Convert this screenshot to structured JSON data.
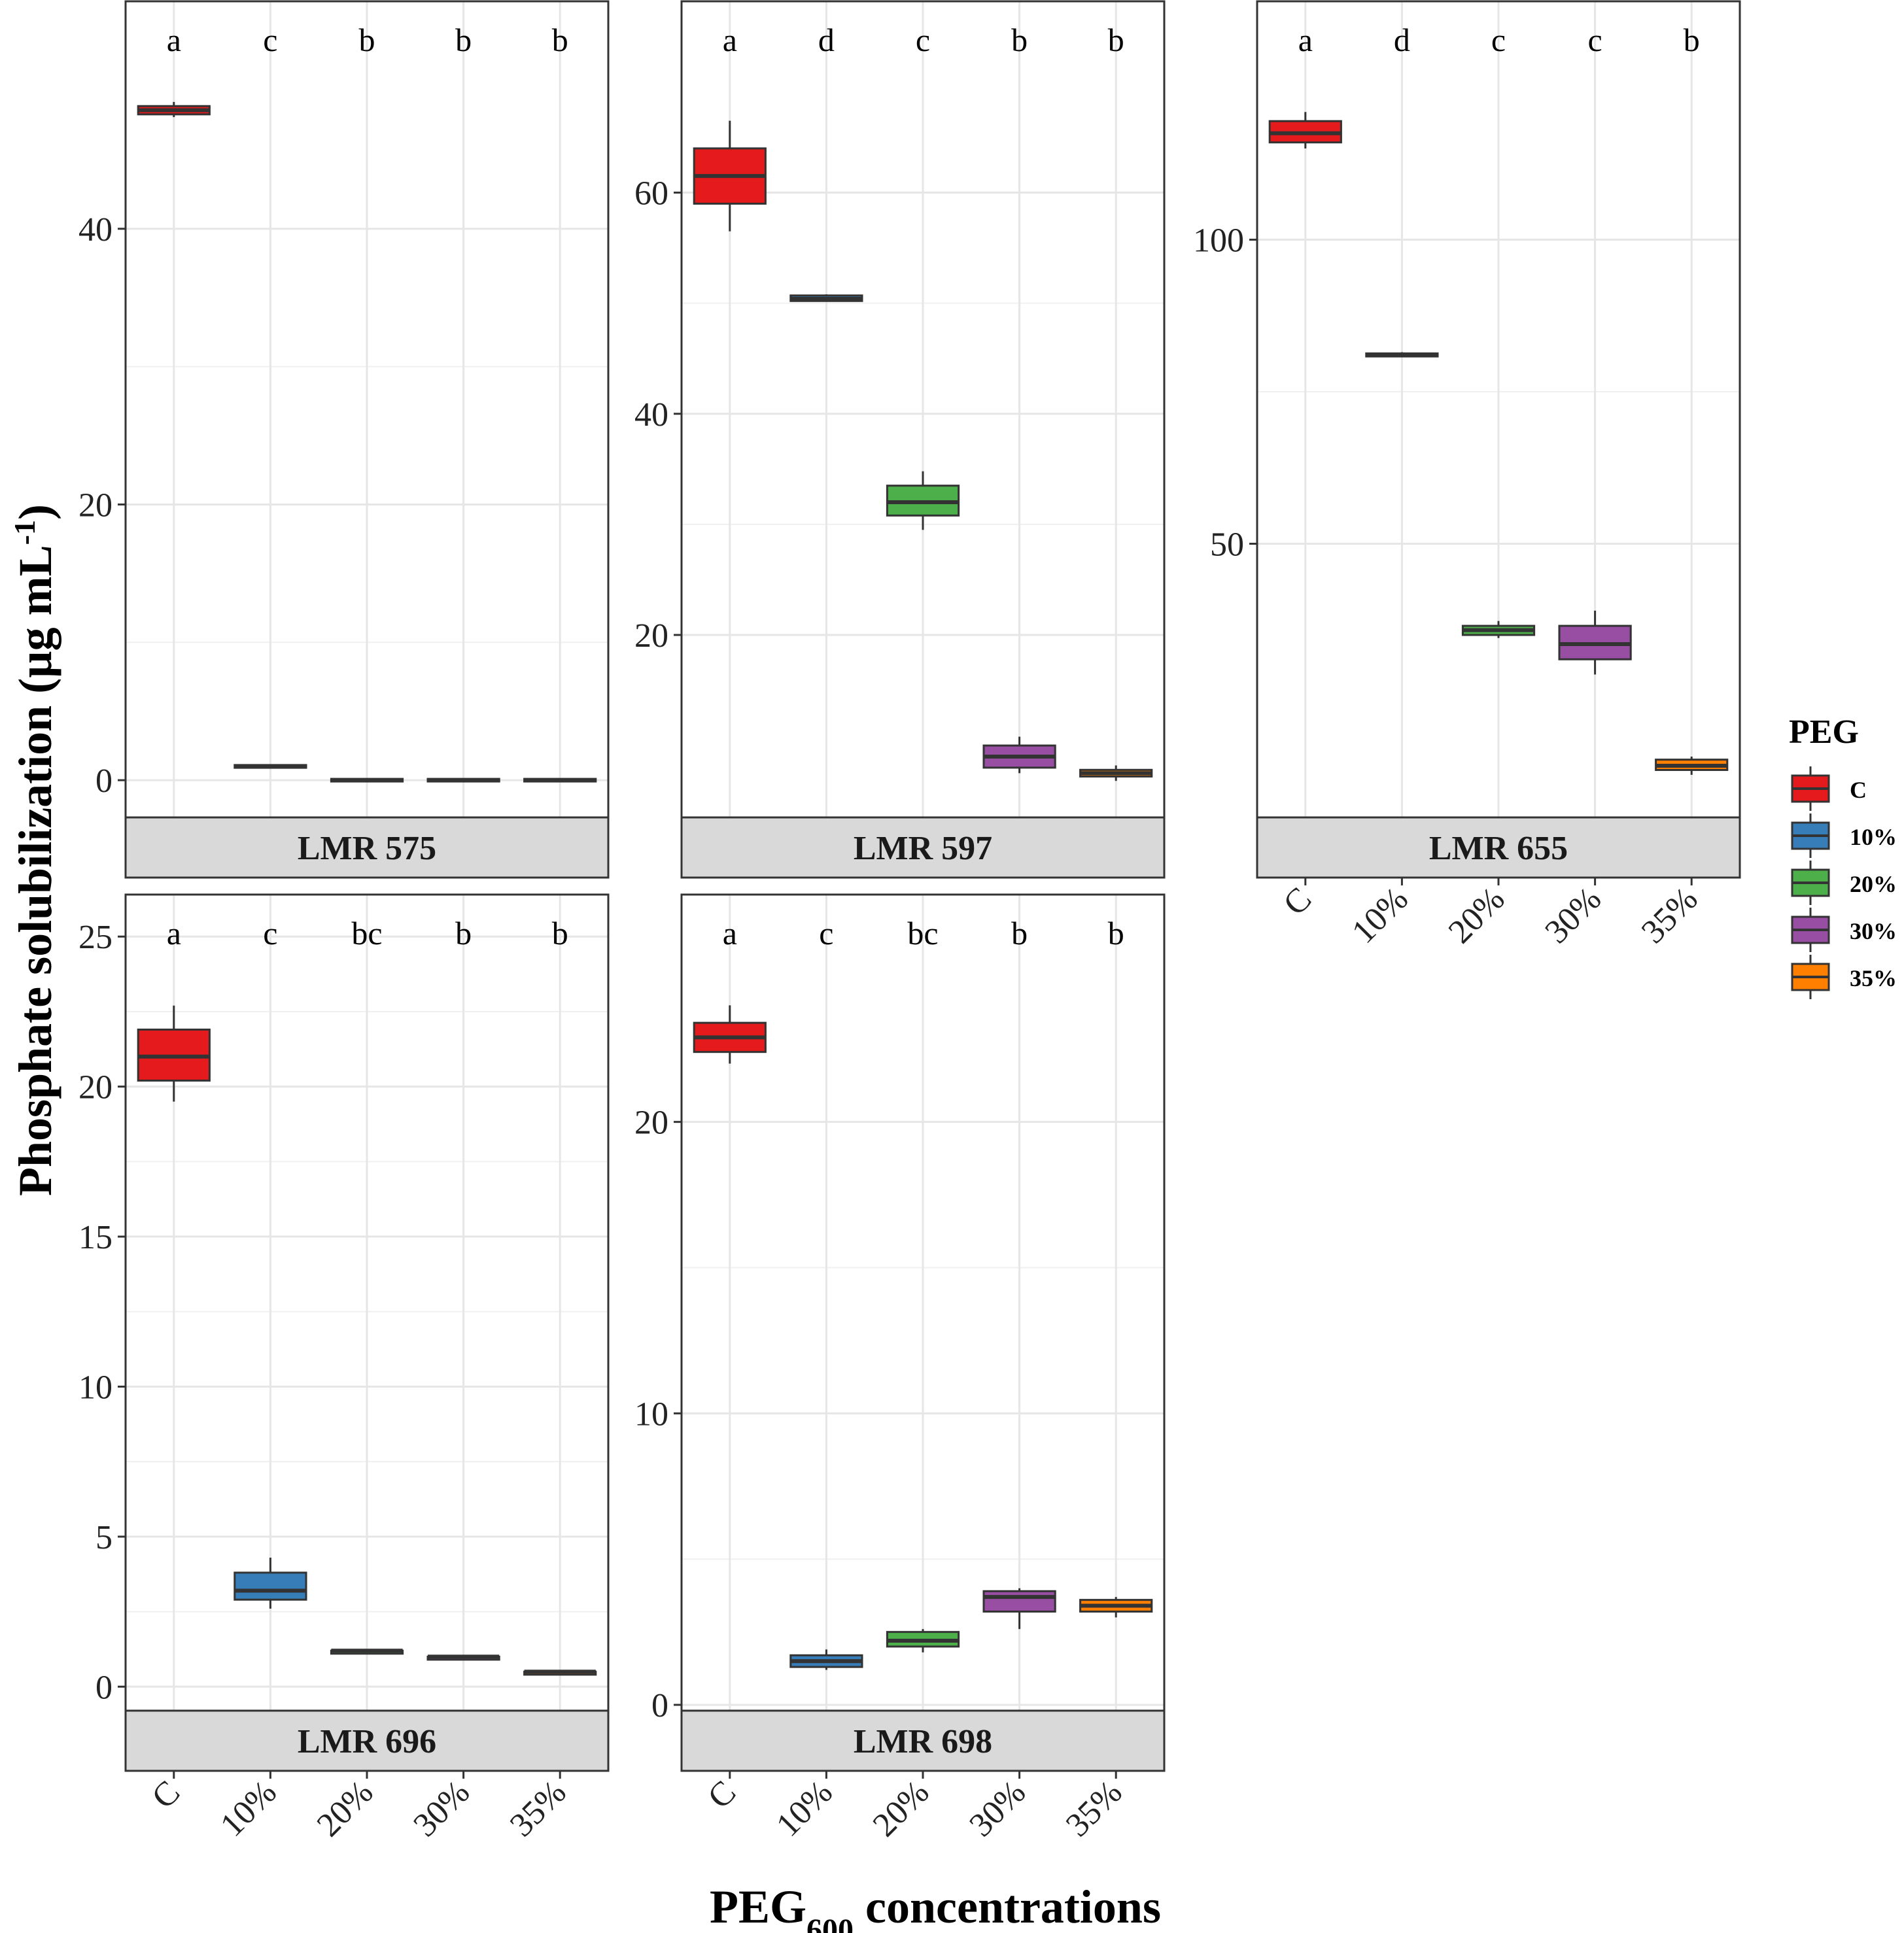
{
  "y_axis_title": "Phosphate solubilization (µg mL",
  "y_axis_title_sup": "-1",
  "y_axis_title_close": ")",
  "x_axis_title_main": "PEG",
  "x_axis_title_sub": "600",
  "x_axis_title_rest": " concentrations",
  "legend": {
    "title": "PEG",
    "items": [
      {
        "label": "C",
        "color": "#e41a1c"
      },
      {
        "label": "10%",
        "color": "#377eb8"
      },
      {
        "label": "20%",
        "color": "#4daf4a"
      },
      {
        "label": "30%",
        "color": "#984ea3"
      },
      {
        "label": "35%",
        "color": "#ff7f00"
      }
    ]
  },
  "chart_data": [
    {
      "type": "boxplot",
      "title": "LMR 575",
      "categories": [
        "C",
        "10%",
        "20%",
        "30%",
        "35%"
      ],
      "yticks": [
        0,
        20,
        40
      ],
      "ylim": [
        -2.7,
        56.5
      ],
      "letters": [
        "a",
        "c",
        "b",
        "b",
        "b"
      ],
      "boxes": [
        {
          "min": 48.1,
          "q1": 48.3,
          "median": 48.6,
          "q3": 48.9,
          "max": 49.2
        },
        {
          "min": 0.9,
          "q1": 0.9,
          "median": 1.0,
          "q3": 1.1,
          "max": 1.1
        },
        {
          "min": 0.0,
          "q1": 0.0,
          "median": 0.0,
          "q3": 0.0,
          "max": 0.0
        },
        {
          "min": 0.0,
          "q1": 0.0,
          "median": 0.0,
          "q3": 0.0,
          "max": 0.0
        },
        {
          "min": 0.0,
          "q1": 0.0,
          "median": 0.0,
          "q3": 0.0,
          "max": 0.0
        }
      ]
    },
    {
      "type": "boxplot",
      "title": "LMR 597",
      "categories": [
        "C",
        "10%",
        "20%",
        "30%",
        "35%"
      ],
      "yticks": [
        20,
        40,
        60
      ],
      "ylim": [
        3.5,
        77.3
      ],
      "letters": [
        "a",
        "d",
        "c",
        "b",
        "b"
      ],
      "boxes": [
        {
          "min": 56.5,
          "q1": 59.0,
          "median": 61.5,
          "q3": 64.0,
          "max": 66.5
        },
        {
          "min": 50.2,
          "q1": 50.2,
          "median": 50.4,
          "q3": 50.7,
          "max": 50.8
        },
        {
          "min": 29.5,
          "q1": 30.8,
          "median": 32.0,
          "q3": 33.5,
          "max": 34.8
        },
        {
          "min": 7.5,
          "q1": 8.0,
          "median": 9.0,
          "q3": 10.0,
          "max": 10.8
        },
        {
          "min": 6.8,
          "q1": 7.2,
          "median": 7.5,
          "q3": 7.8,
          "max": 8.2
        }
      ]
    },
    {
      "type": "boxplot",
      "title": "LMR 655",
      "categories": [
        "C",
        "10%",
        "20%",
        "30%",
        "35%"
      ],
      "yticks": [
        50,
        100
      ],
      "ylim": [
        5.0,
        139.2
      ],
      "letters": [
        "a",
        "d",
        "c",
        "c",
        "b"
      ],
      "boxes": [
        {
          "min": 115.0,
          "q1": 116.0,
          "median": 117.5,
          "q3": 119.5,
          "max": 121.0
        },
        {
          "min": 80.7,
          "q1": 80.8,
          "median": 81.0,
          "q3": 81.3,
          "max": 81.5
        },
        {
          "min": 34.5,
          "q1": 35.0,
          "median": 35.8,
          "q3": 36.5,
          "max": 37.3
        },
        {
          "min": 28.5,
          "q1": 31.0,
          "median": 33.5,
          "q3": 36.5,
          "max": 39.0
        },
        {
          "min": 12.0,
          "q1": 12.8,
          "median": 13.5,
          "q3": 14.5,
          "max": 15.0
        }
      ]
    },
    {
      "type": "boxplot",
      "title": "LMR 696",
      "categories": [
        "C",
        "10%",
        "20%",
        "30%",
        "35%"
      ],
      "yticks": [
        0,
        5,
        10,
        15,
        20,
        25
      ],
      "ylim": [
        -0.8,
        26.4
      ],
      "letters": [
        "a",
        "c",
        "bc",
        "b",
        "b"
      ],
      "boxes": [
        {
          "min": 19.5,
          "q1": 20.2,
          "median": 21.0,
          "q3": 21.9,
          "max": 22.7
        },
        {
          "min": 2.6,
          "q1": 2.9,
          "median": 3.2,
          "q3": 3.8,
          "max": 4.3
        },
        {
          "min": 1.1,
          "q1": 1.1,
          "median": 1.2,
          "q3": 1.2,
          "max": 1.2
        },
        {
          "min": 0.9,
          "q1": 0.9,
          "median": 1.0,
          "q3": 1.0,
          "max": 1.0
        },
        {
          "min": 0.4,
          "q1": 0.4,
          "median": 0.5,
          "q3": 0.5,
          "max": 0.5
        }
      ]
    },
    {
      "type": "boxplot",
      "title": "LMR 698",
      "categories": [
        "C",
        "10%",
        "20%",
        "30%",
        "35%"
      ],
      "yticks": [
        0,
        10,
        20
      ],
      "ylim": [
        -0.2,
        27.8
      ],
      "letters": [
        "a",
        "c",
        "bc",
        "b",
        "b"
      ],
      "boxes": [
        {
          "min": 22.0,
          "q1": 22.4,
          "median": 22.9,
          "q3": 23.4,
          "max": 24.0
        },
        {
          "min": 1.2,
          "q1": 1.3,
          "median": 1.5,
          "q3": 1.7,
          "max": 1.9
        },
        {
          "min": 1.8,
          "q1": 2.0,
          "median": 2.2,
          "q3": 2.5,
          "max": 2.6
        },
        {
          "min": 2.6,
          "q1": 3.2,
          "median": 3.7,
          "q3": 3.9,
          "max": 4.0
        },
        {
          "min": 3.0,
          "q1": 3.2,
          "median": 3.4,
          "q3": 3.6,
          "max": 3.7
        }
      ]
    }
  ]
}
